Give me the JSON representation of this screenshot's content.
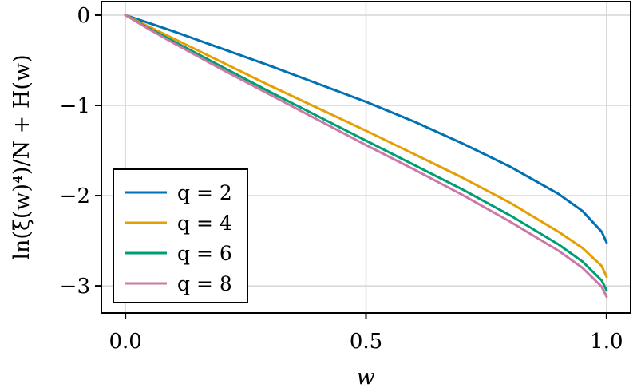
{
  "chart_data": {
    "type": "line",
    "xlabel": "w",
    "ylabel": "ln(ξ(w)⁴)/N + H(w)",
    "xlim": [
      -0.05,
      1.05
    ],
    "ylim": [
      -3.3,
      0.15
    ],
    "x_ticks": [
      0.0,
      0.5,
      1.0
    ],
    "x_tick_labels": [
      "0.0",
      "0.5",
      "1.0"
    ],
    "y_ticks": [
      0,
      -1,
      -2,
      -3
    ],
    "y_tick_labels": [
      "0",
      "−1",
      "−2",
      "−3"
    ],
    "grid": true,
    "legend_position": "bottom-left",
    "x": [
      0.0,
      0.05,
      0.1,
      0.2,
      0.3,
      0.4,
      0.5,
      0.6,
      0.7,
      0.8,
      0.9,
      0.95,
      0.99,
      1.0
    ],
    "series": [
      {
        "name": "q = 2",
        "color": "#0072b2",
        "values": [
          0.0,
          -0.09,
          -0.18,
          -0.37,
          -0.56,
          -0.76,
          -0.96,
          -1.18,
          -1.42,
          -1.68,
          -1.98,
          -2.17,
          -2.4,
          -2.52
        ]
      },
      {
        "name": "q = 4",
        "color": "#e69f00",
        "values": [
          0.0,
          -0.13,
          -0.26,
          -0.52,
          -0.78,
          -1.03,
          -1.28,
          -1.54,
          -1.8,
          -2.08,
          -2.4,
          -2.58,
          -2.78,
          -2.9
        ]
      },
      {
        "name": "q = 6",
        "color": "#009e73",
        "values": [
          0.0,
          -0.15,
          -0.29,
          -0.57,
          -0.85,
          -1.12,
          -1.39,
          -1.66,
          -1.93,
          -2.22,
          -2.54,
          -2.73,
          -2.94,
          -3.05
        ]
      },
      {
        "name": "q = 8",
        "color": "#cc79a7",
        "values": [
          0.0,
          -0.16,
          -0.31,
          -0.6,
          -0.88,
          -1.16,
          -1.44,
          -1.71,
          -1.99,
          -2.29,
          -2.61,
          -2.8,
          -3.01,
          -3.12
        ]
      }
    ]
  }
}
